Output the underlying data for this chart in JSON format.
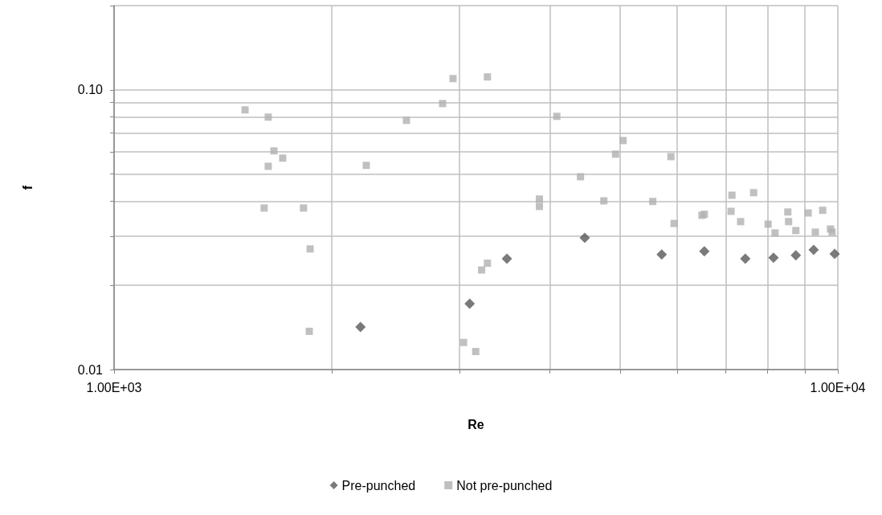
{
  "chart_data": {
    "type": "scatter",
    "xlabel": "Re",
    "ylabel": "f",
    "log": "xy",
    "grid": true,
    "legend": "bottom",
    "xlim": [
      1000,
      10000
    ],
    "ylim": [
      0.01,
      0.2
    ],
    "xticks": [
      {
        "value": 1000,
        "label": "1.00E+03"
      },
      {
        "value": 2000,
        "label": null
      },
      {
        "value": 3000,
        "label": null
      },
      {
        "value": 4000,
        "label": null
      },
      {
        "value": 5000,
        "label": null
      },
      {
        "value": 6000,
        "label": null
      },
      {
        "value": 7000,
        "label": null
      },
      {
        "value": 8000,
        "label": null
      },
      {
        "value": 9000,
        "label": null
      },
      {
        "value": 10000,
        "label": "1.00E+04"
      }
    ],
    "yticks": [
      {
        "value": 0.01,
        "label": "0.01"
      },
      {
        "value": 0.02,
        "label": null
      },
      {
        "value": 0.03,
        "label": null
      },
      {
        "value": 0.04,
        "label": null
      },
      {
        "value": 0.05,
        "label": null
      },
      {
        "value": 0.06,
        "label": null
      },
      {
        "value": 0.07,
        "label": null
      },
      {
        "value": 0.08,
        "label": null
      },
      {
        "value": 0.09,
        "label": null
      },
      {
        "value": 0.1,
        "label": "0.10"
      },
      {
        "value": 0.2,
        "label": null
      }
    ],
    "series": [
      {
        "name": "Pre-punched",
        "color": "#595959",
        "marker": "diamond",
        "x": [
          2190,
          3100,
          3490,
          4470,
          5710,
          6540,
          7450,
          8150,
          8750,
          9260,
          9900
        ],
        "values": [
          0.0142,
          0.0172,
          0.0249,
          0.0296,
          0.0258,
          0.0265,
          0.0249,
          0.0251,
          0.0256,
          0.0268,
          0.0259
        ]
      },
      {
        "name": "Not pre-punched",
        "color": "#b0b0b0",
        "marker": "square",
        "x": [
          1517,
          1633,
          1663,
          1710,
          1633,
          2231,
          2535,
          2844,
          2940,
          3280,
          1612,
          1827,
          1866,
          1861,
          3040,
          3160,
          3220,
          3280,
          4090,
          3870,
          3870,
          4410,
          4750,
          4930,
          5050,
          5550,
          5880,
          5940,
          6490,
          6540,
          7140,
          7120,
          7340,
          7650,
          8010,
          8190,
          8530,
          8550,
          8750,
          9100,
          9310,
          9530,
          9770,
          9820
        ],
        "values": [
          0.0848,
          0.0799,
          0.0605,
          0.057,
          0.0533,
          0.0537,
          0.0778,
          0.0893,
          0.1097,
          0.1112,
          0.0378,
          0.0378,
          0.027,
          0.0137,
          0.0125,
          0.0116,
          0.0227,
          0.024,
          0.0804,
          0.0407,
          0.0383,
          0.0489,
          0.0401,
          0.0589,
          0.0659,
          0.0399,
          0.0577,
          0.0333,
          0.0356,
          0.0359,
          0.042,
          0.0368,
          0.0338,
          0.0429,
          0.0331,
          0.0308,
          0.0366,
          0.0338,
          0.0314,
          0.0363,
          0.031,
          0.0371,
          0.0318,
          0.031
        ]
      }
    ]
  }
}
